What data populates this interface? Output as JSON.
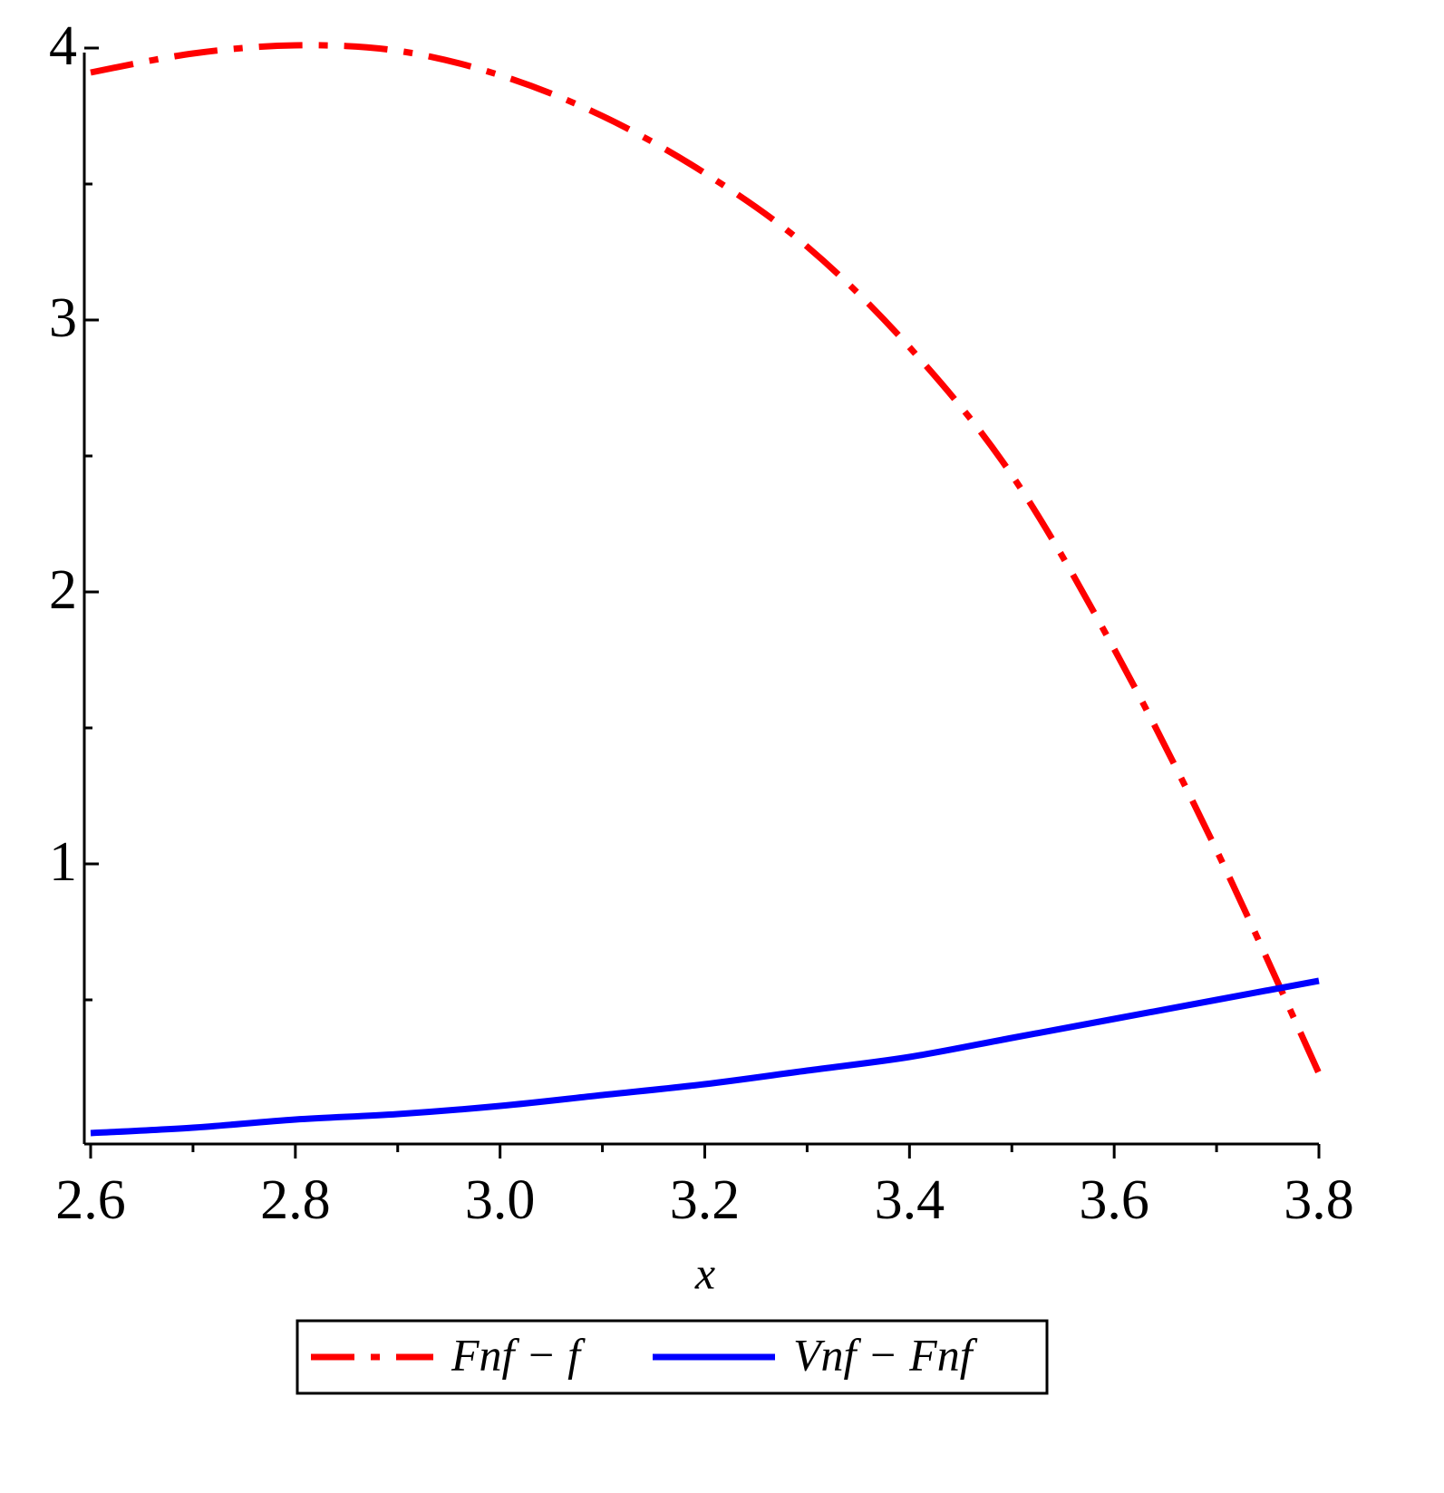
{
  "chart_data": {
    "type": "line",
    "x_label": "x",
    "x": [
      2.6,
      2.7,
      2.8,
      2.9,
      3.0,
      3.1,
      3.2,
      3.3,
      3.4,
      3.5,
      3.6,
      3.7,
      3.8
    ],
    "series": [
      {
        "name": "Fnf − f",
        "color": "#ff0000",
        "dash": "dashdot",
        "values": [
          3.91,
          3.98,
          4.01,
          3.99,
          3.9,
          3.75,
          3.54,
          3.27,
          2.9,
          2.43,
          1.79,
          1.05,
          0.23
        ]
      },
      {
        "name": "Vnf − Fnf",
        "color": "#0000ff",
        "dash": "solid",
        "values": [
          0.01,
          0.03,
          0.06,
          0.08,
          0.11,
          0.15,
          0.19,
          0.24,
          0.29,
          0.36,
          0.43,
          0.5,
          0.57
        ]
      }
    ],
    "xlim": [
      2.6,
      3.8
    ],
    "ylim": [
      -0.03,
      4.01
    ],
    "xticks": [
      2.6,
      2.8,
      {
        "value": 3,
        "label": "3.0"
      },
      3.2,
      3.4,
      3.6,
      3.8
    ],
    "minor_xticks": [
      2.7,
      2.9,
      3.1,
      3.3,
      3.5,
      3.7
    ],
    "yticks": [
      1,
      2,
      3,
      4
    ],
    "minor_yticks": [
      0.5,
      1.5,
      2.5,
      3.5
    ],
    "legend": "bottom"
  }
}
